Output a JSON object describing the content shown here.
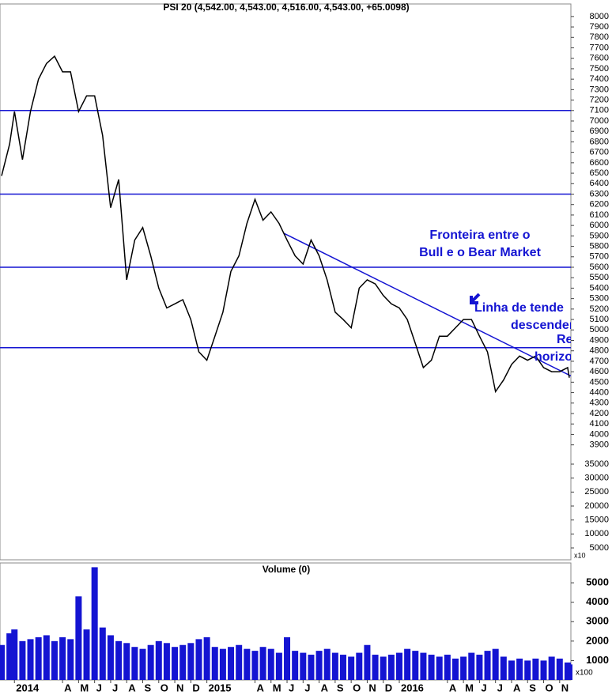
{
  "chart_data": [
    {
      "type": "line",
      "title": "PSI 20 (4,542.00, 4,543.00, 4,516.00, 4,543.00, +65.0098)",
      "color": "#000000",
      "x": [
        -0.8,
        -0.3,
        0,
        0.5,
        1,
        1.5,
        2,
        2.5,
        3,
        3.5,
        4,
        4.5,
        5,
        5.5,
        6,
        6.5,
        7,
        7.5,
        8,
        8.5,
        9,
        9.5,
        10,
        10.5,
        11,
        11.5,
        12,
        12.5,
        13,
        13.5,
        14,
        14.5,
        15,
        15.5,
        16,
        16.5,
        17,
        17.5,
        18,
        18.5,
        19,
        19.5,
        20,
        20.5,
        21,
        21.5,
        22,
        22.5,
        23,
        23.5,
        24,
        24.5,
        25,
        25.5,
        26,
        26.5,
        27,
        27.5,
        28,
        28.5,
        29,
        29.5,
        30,
        30.5,
        31,
        31.5,
        32,
        32.5,
        33,
        33.5,
        34,
        34.5,
        34.6
      ],
      "values": [
        6475,
        6780,
        7090,
        6630,
        7090,
        7400,
        7550,
        7620,
        7470,
        7470,
        7090,
        7240,
        7240,
        6860,
        6170,
        6440,
        5480,
        5860,
        5980,
        5710,
        5400,
        5210,
        5250,
        5290,
        5100,
        4790,
        4710,
        4940,
        5170,
        5560,
        5710,
        6020,
        6250,
        6050,
        6130,
        6020,
        5860,
        5710,
        5630,
        5860,
        5710,
        5480,
        5170,
        5100,
        5020,
        5400,
        5480,
        5440,
        5330,
        5250,
        5210,
        5100,
        4870,
        4640,
        4710,
        4940,
        4940,
        5020,
        5100,
        5100,
        4940,
        4790,
        4410,
        4520,
        4670,
        4750,
        4710,
        4750,
        4640,
        4600,
        4600,
        4640,
        4543
      ],
      "xlim": [
        -0.9,
        34.7
      ],
      "ylim": [
        2800,
        8120
      ],
      "yticks": [
        3900,
        4000,
        4100,
        4200,
        4300,
        4400,
        4500,
        4600,
        4700,
        4800,
        4900,
        5000,
        5100,
        5200,
        5300,
        5400,
        5500,
        5600,
        5700,
        5800,
        5900,
        6000,
        6100,
        6200,
        6300,
        6400,
        6500,
        6600,
        6700,
        6800,
        6900,
        7000,
        7100,
        7200,
        7300,
        7400,
        7500,
        7600,
        7700,
        7800,
        7900,
        8000
      ],
      "y2lim": [
        754,
        199730
      ],
      "y2ticks": [
        5000,
        10000,
        15000,
        20000,
        25000,
        30000,
        35000
      ],
      "y2_unit_label": "x10",
      "line_color": "#1414d2",
      "hlines": [
        7100,
        6300,
        5600,
        4830
      ],
      "trendline": {
        "x": [
          16.8,
          34.7
        ],
        "y": [
          5925,
          4560
        ]
      },
      "annotations": [
        "Fronteira entre o",
        "Bull e o Bear Market",
        "Linha de tende",
        "descendent",
        "Resis",
        "horizo"
      ]
    },
    {
      "type": "bar",
      "title": "Volume (0)",
      "color": "#1414d2",
      "x": [
        -0.8,
        -0.3,
        0,
        0.5,
        1,
        1.5,
        2,
        2.5,
        3,
        3.5,
        4,
        4.5,
        5,
        5.5,
        6,
        6.5,
        7,
        7.5,
        8,
        8.5,
        9,
        9.5,
        10,
        10.5,
        11,
        11.5,
        12,
        12.5,
        13,
        13.5,
        14,
        14.5,
        15,
        15.5,
        16,
        16.5,
        17,
        17.5,
        18,
        18.5,
        19,
        19.5,
        20,
        20.5,
        21,
        21.5,
        22,
        22.5,
        23,
        23.5,
        24,
        24.5,
        25,
        25.5,
        26,
        26.5,
        27,
        27.5,
        28,
        28.5,
        29,
        29.5,
        30,
        30.5,
        31,
        31.5,
        32,
        32.5,
        33,
        33.5,
        34,
        34.5,
        34.6
      ],
      "values": [
        1800,
        2400,
        2600,
        2000,
        2100,
        2200,
        2300,
        2000,
        2200,
        2100,
        4300,
        2600,
        5800,
        2700,
        2300,
        2000,
        1900,
        1700,
        1600,
        1800,
        2000,
        1900,
        1700,
        1800,
        1900,
        2100,
        2200,
        1700,
        1600,
        1700,
        1800,
        1600,
        1500,
        1700,
        1600,
        1400,
        2200,
        1500,
        1400,
        1300,
        1500,
        1600,
        1400,
        1300,
        1200,
        1400,
        1800,
        1300,
        1200,
        1300,
        1400,
        1600,
        1500,
        1400,
        1300,
        1200,
        1300,
        1100,
        1200,
        1400,
        1300,
        1500,
        1600,
        1200,
        1000,
        1100,
        1000,
        1100,
        1000,
        1200,
        1100,
        900,
        800
      ],
      "xlim": [
        -0.9,
        34.7
      ],
      "ylim": [
        0,
        6020
      ],
      "yticks": [
        1000,
        2000,
        3000,
        4000,
        5000
      ],
      "unit_label": "x100",
      "xticks": [
        {
          "value": 0,
          "label": "2014"
        },
        {
          "value": 3,
          "label": "A"
        },
        {
          "value": 4,
          "label": "M"
        },
        {
          "value": 5,
          "label": "J"
        },
        {
          "value": 6,
          "label": "J"
        },
        {
          "value": 7,
          "label": "A"
        },
        {
          "value": 8,
          "label": "S"
        },
        {
          "value": 9,
          "label": "O"
        },
        {
          "value": 10,
          "label": "N"
        },
        {
          "value": 11,
          "label": "D"
        },
        {
          "value": 12,
          "label": "2015"
        },
        {
          "value": 15,
          "label": "A"
        },
        {
          "value": 16,
          "label": "M"
        },
        {
          "value": 17,
          "label": "J"
        },
        {
          "value": 18,
          "label": "J"
        },
        {
          "value": 19,
          "label": "A"
        },
        {
          "value": 20,
          "label": "S"
        },
        {
          "value": 21,
          "label": "O"
        },
        {
          "value": 22,
          "label": "N"
        },
        {
          "value": 23,
          "label": "D"
        },
        {
          "value": 24,
          "label": "2016"
        },
        {
          "value": 27,
          "label": "A"
        },
        {
          "value": 28,
          "label": "M"
        },
        {
          "value": 29,
          "label": "J"
        },
        {
          "value": 30,
          "label": "J"
        },
        {
          "value": 31,
          "label": "A"
        },
        {
          "value": 32,
          "label": "S"
        },
        {
          "value": 33,
          "label": "O"
        },
        {
          "value": 34,
          "label": "N"
        }
      ]
    }
  ]
}
